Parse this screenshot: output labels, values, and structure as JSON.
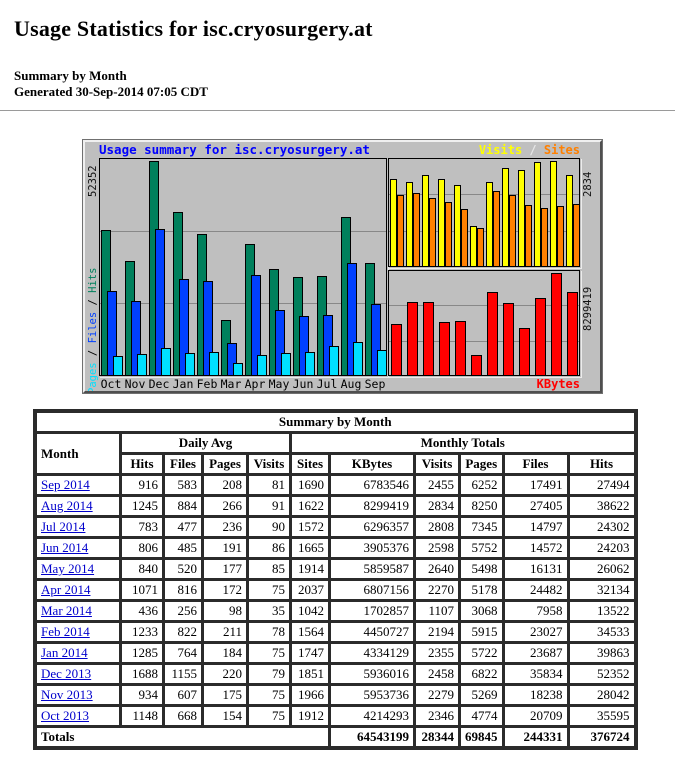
{
  "page": {
    "title": "Usage Statistics for isc.cryosurgery.at",
    "subtitle": "Summary by Month",
    "generated": "Generated 30-Sep-2014 07:05 CDT"
  },
  "chart_data": {
    "type": "bar",
    "title": "Usage summary for isc.cryosurgery.at",
    "title_color": "#0000ff",
    "categories": [
      "Oct",
      "Nov",
      "Dec",
      "Jan",
      "Feb",
      "Mar",
      "Apr",
      "May",
      "Jun",
      "Jul",
      "Aug",
      "Sep"
    ],
    "series": [
      {
        "name": "Hits",
        "color": "#00805c",
        "values": [
          35595,
          28042,
          52352,
          39863,
          34533,
          13522,
          32134,
          26062,
          24203,
          24302,
          38622,
          27494
        ]
      },
      {
        "name": "Files",
        "color": "#0040ff",
        "values": [
          20709,
          18238,
          35834,
          23687,
          23027,
          7958,
          24482,
          16131,
          14572,
          14797,
          27405,
          17491
        ]
      },
      {
        "name": "Pages",
        "color": "#00e0ff",
        "values": [
          4774,
          5269,
          6822,
          5722,
          5915,
          3068,
          5178,
          5498,
          5752,
          7345,
          8250,
          6252
        ]
      },
      {
        "name": "Visits",
        "color": "#ffff00",
        "values": [
          2346,
          2279,
          2458,
          2355,
          2194,
          1107,
          2270,
          2640,
          2598,
          2808,
          2834,
          2455
        ]
      },
      {
        "name": "Sites",
        "color": "#ff8000",
        "values": [
          1912,
          1966,
          1851,
          1747,
          1564,
          1042,
          2037,
          1914,
          1665,
          1572,
          1622,
          1690
        ]
      },
      {
        "name": "KBytes",
        "color": "#ff0000",
        "values": [
          4214293,
          5953736,
          5936016,
          4334129,
          4450727,
          1702857,
          6807156,
          5859587,
          3905376,
          6296357,
          8299419,
          6783546
        ]
      }
    ],
    "left_axis_max_label": "52352",
    "left_axis_label": "Pages / Files / Hits",
    "right_top_axis_max_label": "2834",
    "right_bottom_axis_max_label": "8299419",
    "kbytes_label": "KBytes",
    "legend_top_right": "Visits / Sites",
    "ylim_left": [
      0,
      52352
    ],
    "ylim_right_top": [
      0,
      2834
    ],
    "ylim_right_bottom": [
      0,
      8299419
    ],
    "grid": "horizontal thirds",
    "legend_position": "top-right",
    "background": "#bfbfbf",
    "grid_color": "#888888"
  },
  "table": {
    "title": "Summary by Month",
    "month_header": "Month",
    "group_daily": "Daily Avg",
    "group_monthly": "Monthly Totals",
    "daily_cols": [
      "Hits",
      "Files",
      "Pages",
      "Visits"
    ],
    "monthly_cols": [
      "Sites",
      "KBytes",
      "Visits",
      "Pages",
      "Files",
      "Hits"
    ],
    "rows": [
      {
        "month": "Sep 2014",
        "values": [
          916,
          583,
          208,
          81,
          1690,
          6783546,
          2455,
          6252,
          17491,
          27494
        ]
      },
      {
        "month": "Aug 2014",
        "values": [
          1245,
          884,
          266,
          91,
          1622,
          8299419,
          2834,
          8250,
          27405,
          38622
        ]
      },
      {
        "month": "Jul 2014",
        "values": [
          783,
          477,
          236,
          90,
          1572,
          6296357,
          2808,
          7345,
          14797,
          24302
        ]
      },
      {
        "month": "Jun 2014",
        "values": [
          806,
          485,
          191,
          86,
          1665,
          3905376,
          2598,
          5752,
          14572,
          24203
        ]
      },
      {
        "month": "May 2014",
        "values": [
          840,
          520,
          177,
          85,
          1914,
          5859587,
          2640,
          5498,
          16131,
          26062
        ]
      },
      {
        "month": "Apr 2014",
        "values": [
          1071,
          816,
          172,
          75,
          2037,
          6807156,
          2270,
          5178,
          24482,
          32134
        ]
      },
      {
        "month": "Mar 2014",
        "values": [
          436,
          256,
          98,
          35,
          1042,
          1702857,
          1107,
          3068,
          7958,
          13522
        ]
      },
      {
        "month": "Feb 2014",
        "values": [
          1233,
          822,
          211,
          78,
          1564,
          4450727,
          2194,
          5915,
          23027,
          34533
        ]
      },
      {
        "month": "Jan 2014",
        "values": [
          1285,
          764,
          184,
          75,
          1747,
          4334129,
          2355,
          5722,
          23687,
          39863
        ]
      },
      {
        "month": "Dec 2013",
        "values": [
          1688,
          1155,
          220,
          79,
          1851,
          5936016,
          2458,
          6822,
          35834,
          52352
        ]
      },
      {
        "month": "Nov 2013",
        "values": [
          934,
          607,
          175,
          75,
          1966,
          5953736,
          2279,
          5269,
          18238,
          28042
        ]
      },
      {
        "month": "Oct 2013",
        "values": [
          1148,
          668,
          154,
          75,
          1912,
          4214293,
          2346,
          4774,
          20709,
          35595
        ]
      }
    ],
    "totals_label": "Totals",
    "totals": [
      64543199,
      28344,
      69845,
      244331,
      376724
    ]
  }
}
